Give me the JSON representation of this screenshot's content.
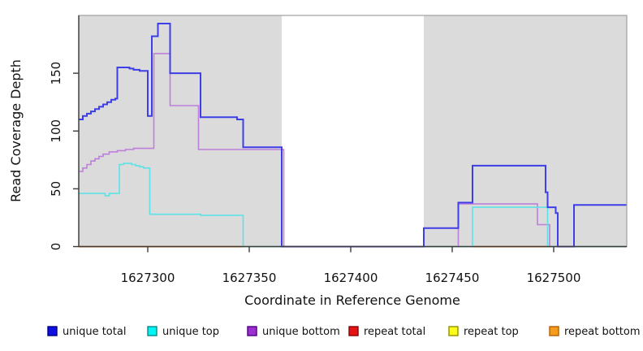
{
  "figure": {
    "xlabel": "Coordinate in Reference Genome",
    "ylabel": "Read Coverage Depth"
  },
  "colors": {
    "background": "#ffffff",
    "plot_band": "#dbdbdb",
    "plot_box_border": "#9f9f9f",
    "axis": "#3c3c3c",
    "text": "#111111"
  },
  "chart_data": {
    "type": "line",
    "title": "",
    "xlabel": "Coordinate in Reference Genome",
    "ylabel": "Read Coverage Depth",
    "xlim": [
      1627266,
      1627536
    ],
    "ylim": [
      0,
      200
    ],
    "x_ticks": [
      1627300,
      1627350,
      1627400,
      1627450,
      1627500
    ],
    "y_ticks": [
      0,
      50,
      100,
      150
    ],
    "grid": false,
    "legend_position": "bottom",
    "background_bands": [
      [
        1627266,
        1627366
      ],
      [
        1627436,
        1627536
      ]
    ],
    "uncovered_gap": [
      1627366,
      1627436
    ],
    "series": [
      {
        "name": "repeat total",
        "color": "#e41414",
        "width": 1.6,
        "segments": [
          [
            [
              1627266,
              0
            ],
            [
              1627347,
              0
            ]
          ],
          [
            [
              1627460,
              0
            ],
            [
              1627499,
              0
            ]
          ]
        ]
      },
      {
        "name": "repeat top",
        "color": "#fcfc1e",
        "width": 1.6,
        "segments": [
          [
            [
              1627266,
              0
            ],
            [
              1627347,
              0
            ]
          ],
          [
            [
              1627460,
              0
            ],
            [
              1627499,
              0
            ]
          ]
        ]
      },
      {
        "name": "unique bottom",
        "color": "#bd7fd9",
        "width": 1.6,
        "segments": [
          [
            [
              1627266,
              65
            ],
            [
              1627268,
              68
            ],
            [
              1627270,
              71
            ],
            [
              1627272,
              74
            ],
            [
              1627274,
              76
            ],
            [
              1627276,
              78
            ],
            [
              1627278,
              80
            ],
            [
              1627281,
              82
            ],
            [
              1627285,
              83
            ],
            [
              1627289,
              84
            ],
            [
              1627293,
              85
            ],
            [
              1627303,
              167
            ],
            [
              1627311,
              122
            ],
            [
              1627325,
              84
            ],
            [
              1627367,
              0
            ],
            [
              1627453,
              37
            ],
            [
              1627492,
              19
            ],
            [
              1627498,
              0
            ],
            [
              1627536,
              0
            ]
          ]
        ]
      },
      {
        "name": "zero baseline",
        "color": "#7ccd7c",
        "width": 1.3,
        "segments": [
          [
            [
              1627347,
              0
            ],
            [
              1627536,
              0
            ]
          ]
        ]
      },
      {
        "name": "repeat bottom",
        "color": "#ff8c1a",
        "width": 2,
        "segments": [
          [
            [
              1627266,
              0
            ],
            [
              1627347,
              0
            ]
          ],
          [
            [
              1627460,
              0
            ],
            [
              1627499,
              0
            ]
          ]
        ]
      },
      {
        "name": "unique top",
        "color": "#5ee2e6",
        "width": 1.6,
        "segments": [
          [
            [
              1627266,
              46
            ],
            [
              1627279,
              44
            ],
            [
              1627281,
              46
            ],
            [
              1627286,
              71
            ],
            [
              1627288,
              72
            ],
            [
              1627292,
              71
            ],
            [
              1627294,
              70
            ],
            [
              1627296,
              69
            ],
            [
              1627298,
              68
            ],
            [
              1627301,
              28
            ],
            [
              1627326,
              27
            ],
            [
              1627347,
              0
            ],
            [
              1627460,
              34
            ],
            [
              1627497,
              0
            ],
            [
              1627536,
              0
            ]
          ]
        ]
      },
      {
        "name": "unique total",
        "color": "#3e3ee8",
        "width": 2,
        "segments": [
          [
            [
              1627266,
              110
            ],
            [
              1627268,
              113
            ],
            [
              1627270,
              115
            ],
            [
              1627272,
              117
            ],
            [
              1627274,
              119
            ],
            [
              1627276,
              121
            ],
            [
              1627278,
              123
            ],
            [
              1627280,
              125
            ],
            [
              1627282,
              127
            ],
            [
              1627284,
              128
            ],
            [
              1627285,
              155
            ],
            [
              1627291,
              154
            ],
            [
              1627293,
              153
            ],
            [
              1627296,
              152
            ],
            [
              1627300,
              113
            ],
            [
              1627302,
              182
            ],
            [
              1627305,
              193
            ],
            [
              1627311,
              150
            ],
            [
              1627326,
              112
            ],
            [
              1627344,
              110
            ],
            [
              1627347,
              86
            ],
            [
              1627366,
              0
            ],
            [
              1627436,
              16
            ],
            [
              1627453,
              38
            ],
            [
              1627460,
              70
            ],
            [
              1627496,
              47
            ],
            [
              1627497,
              34
            ],
            [
              1627501,
              29
            ],
            [
              1627502,
              0
            ],
            [
              1627510,
              36
            ],
            [
              1627536,
              36
            ]
          ]
        ]
      }
    ],
    "legend": [
      {
        "label": "unique total",
        "fill": "#0f0fe0",
        "border": "#000080"
      },
      {
        "label": "unique top",
        "fill": "#00f5f5",
        "border": "#008b8b"
      },
      {
        "label": "unique bottom",
        "fill": "#9c30d0",
        "border": "#4b0082"
      },
      {
        "label": "repeat total",
        "fill": "#e41414",
        "border": "#8b0000"
      },
      {
        "label": "repeat top",
        "fill": "#fcfc1e",
        "border": "#8f8f00"
      },
      {
        "label": "repeat bottom",
        "fill": "#f59c1e",
        "border": "#b06000"
      }
    ]
  }
}
